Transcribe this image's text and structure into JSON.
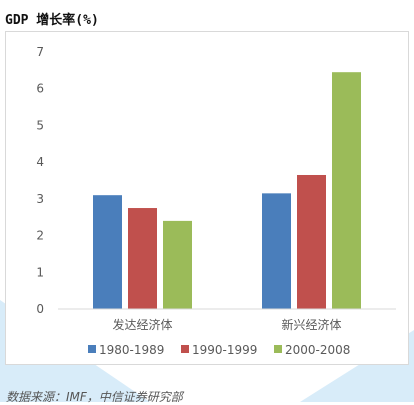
{
  "title": "GDP 增长率(%)",
  "source_note": "数据来源：IMF，中信证券研究部",
  "colors": {
    "series_1": "#4a7ebb",
    "series_2": "#c0504d",
    "series_3": "#9bbb59",
    "decor": "#63b3e6"
  },
  "chart_data": {
    "type": "bar",
    "categories": [
      "发达经济体",
      "新兴经济体"
    ],
    "series": [
      {
        "name": "1980-1989",
        "values": [
          3.1,
          3.15
        ]
      },
      {
        "name": "1990-1999",
        "values": [
          2.75,
          3.65
        ]
      },
      {
        "name": "2000-2008",
        "values": [
          2.4,
          6.45
        ]
      }
    ],
    "title": "",
    "xlabel": "",
    "ylabel": "",
    "ylim": [
      0,
      7
    ],
    "yticks": [
      0,
      1,
      2,
      3,
      4,
      5,
      6,
      7
    ],
    "grid": false,
    "legend": "bottom"
  }
}
